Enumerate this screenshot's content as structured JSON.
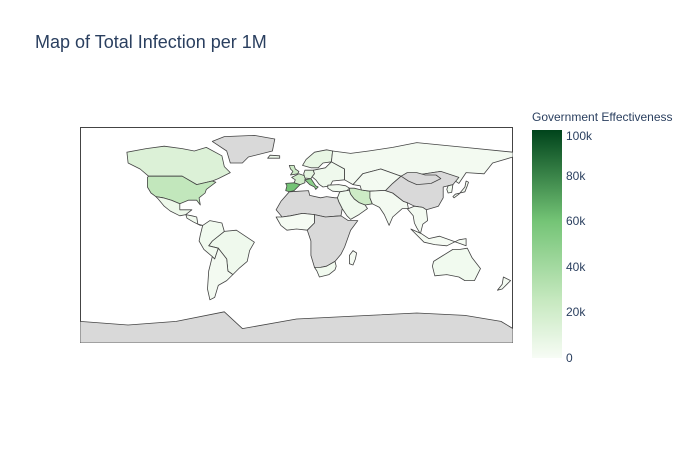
{
  "title": "Map of Total Infection per 1M",
  "colorbar": {
    "title": "Government Effectiveness",
    "min": 0,
    "max": 100000,
    "ticks": [
      {
        "value": 100000,
        "label": "100k"
      },
      {
        "value": 80000,
        "label": "80k"
      },
      {
        "value": 60000,
        "label": "60k"
      },
      {
        "value": 40000,
        "label": "40k"
      },
      {
        "value": 20000,
        "label": "20k"
      },
      {
        "value": 0,
        "label": "0"
      }
    ]
  },
  "colors": {
    "scale_low": "#f7fcf5",
    "scale_mid": "#74c476",
    "scale_high": "#00441b",
    "no_data": "#d9d9d9",
    "border": "#444444",
    "title": "#2a3f5f"
  },
  "chart_data": {
    "type": "choropleth",
    "projection": "equirectangular",
    "metric": "total infection per 1M",
    "regions": [
      {
        "name": "Canada",
        "value": 14000
      },
      {
        "name": "United States",
        "value": 27000
      },
      {
        "name": "Mexico",
        "value": 5000
      },
      {
        "name": "Central America",
        "value": 3000
      },
      {
        "name": "Brazil",
        "value": 4000
      },
      {
        "name": "Andean South America",
        "value": 3000
      },
      {
        "name": "Southern Cone",
        "value": 2000
      },
      {
        "name": "Greenland",
        "value": null
      },
      {
        "name": "Iceland",
        "value": 5000
      },
      {
        "name": "Spain",
        "value": 60000
      },
      {
        "name": "France",
        "value": 20000
      },
      {
        "name": "Italy",
        "value": 50000
      },
      {
        "name": "Germany",
        "value": 10000
      },
      {
        "name": "United Kingdom",
        "value": 22000
      },
      {
        "name": "Scandinavia",
        "value": 8000
      },
      {
        "name": "Eastern Europe",
        "value": 4000
      },
      {
        "name": "Russia",
        "value": 2000
      },
      {
        "name": "Turkey",
        "value": 3000
      },
      {
        "name": "Iran",
        "value": 22000
      },
      {
        "name": "Middle East",
        "value": 4000
      },
      {
        "name": "North Africa",
        "value": null
      },
      {
        "name": "West Africa",
        "value": 1000
      },
      {
        "name": "Sub-Saharan Africa",
        "value": null
      },
      {
        "name": "South Africa",
        "value": 3000
      },
      {
        "name": "Madagascar",
        "value": 1000
      },
      {
        "name": "Central Asia",
        "value": 2000
      },
      {
        "name": "South Asia",
        "value": 2000
      },
      {
        "name": "China",
        "value": null
      },
      {
        "name": "Mongolia",
        "value": null
      },
      {
        "name": "Japan",
        "value": 2000
      },
      {
        "name": "Korea",
        "value": 3000
      },
      {
        "name": "Southeast Asia",
        "value": 2000
      },
      {
        "name": "Indonesia",
        "value": 1000
      },
      {
        "name": "Australia",
        "value": 3000
      },
      {
        "name": "New Zealand",
        "value": 2000
      },
      {
        "name": "Antarctica",
        "value": null
      }
    ]
  }
}
